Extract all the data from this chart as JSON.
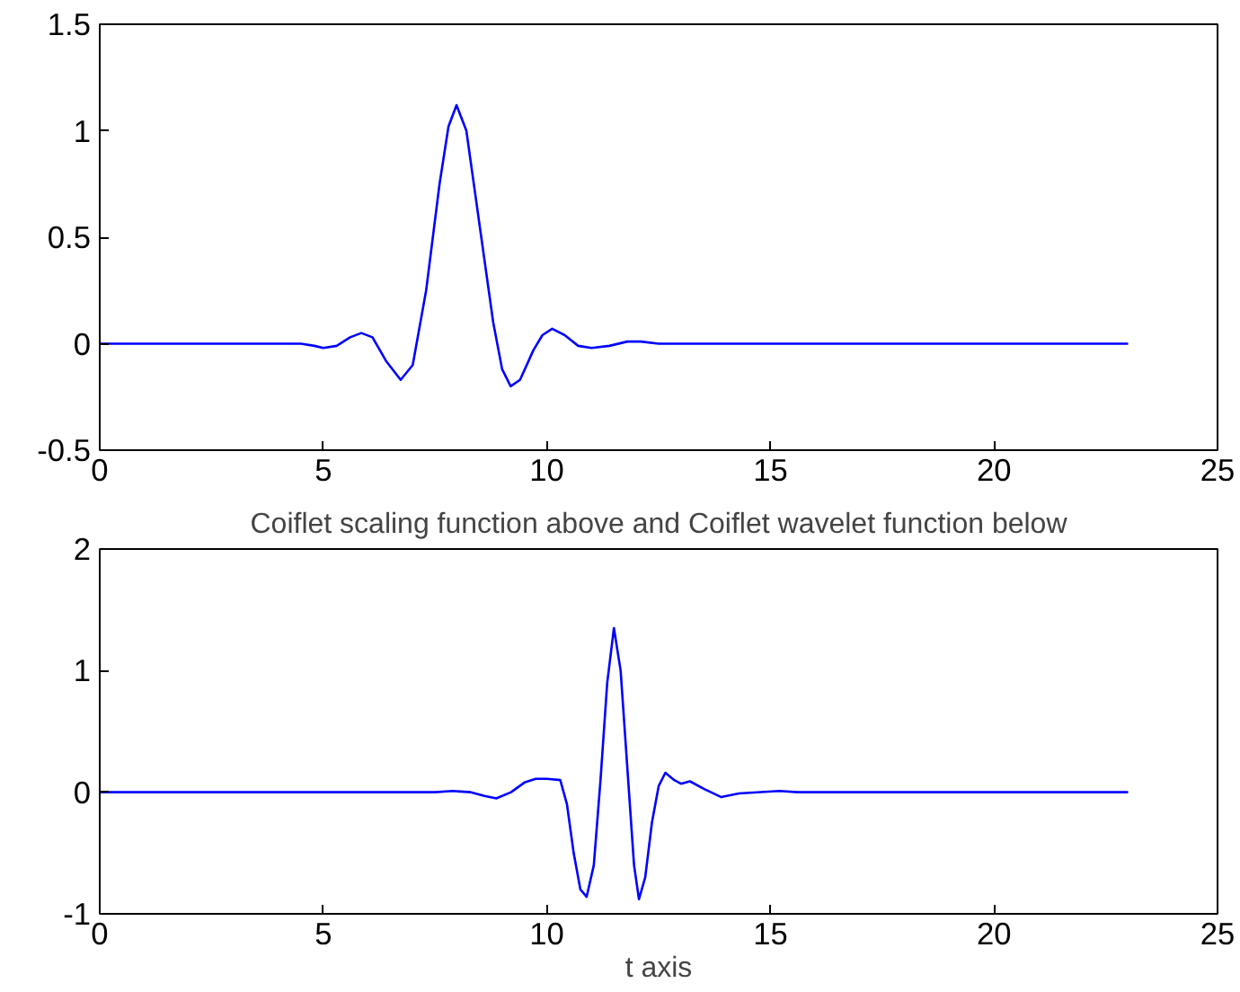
{
  "chart_data": [
    {
      "type": "line",
      "xlim": [
        0,
        25
      ],
      "ylim": [
        -0.5,
        1.5
      ],
      "xticks": [
        0,
        5,
        10,
        15,
        20,
        25
      ],
      "yticks": [
        -0.5,
        0,
        0.5,
        1,
        1.5
      ],
      "series": [
        {
          "color": "#0000ff",
          "x": [
            0,
            4.5,
            4.8,
            5.0,
            5.3,
            5.6,
            5.85,
            6.1,
            6.4,
            6.73,
            7.0,
            7.3,
            7.6,
            7.8,
            7.98,
            8.2,
            8.5,
            8.8,
            9.0,
            9.19,
            9.4,
            9.7,
            9.9,
            10.12,
            10.4,
            10.7,
            11.0,
            11.4,
            11.8,
            12.1,
            12.5,
            13,
            23
          ],
          "values": [
            0,
            0,
            -0.01,
            -0.02,
            -0.01,
            0.03,
            0.05,
            0.03,
            -0.08,
            -0.17,
            -0.1,
            0.25,
            0.75,
            1.02,
            1.12,
            1.0,
            0.55,
            0.1,
            -0.12,
            -0.2,
            -0.17,
            -0.03,
            0.04,
            0.07,
            0.04,
            -0.01,
            -0.02,
            -0.01,
            0.01,
            0.01,
            0,
            0,
            0
          ]
        }
      ]
    },
    {
      "type": "line",
      "title": "Coiflet scaling function above and Coiflet wavelet function below",
      "xlabel": "t axis",
      "xlim": [
        0,
        25
      ],
      "ylim": [
        -1,
        2
      ],
      "xticks": [
        0,
        5,
        10,
        15,
        20,
        25
      ],
      "yticks": [
        -1,
        0,
        1,
        2
      ],
      "series": [
        {
          "color": "#0000ff",
          "x": [
            0,
            7.5,
            7.9,
            8.3,
            8.6,
            8.87,
            9.2,
            9.5,
            9.75,
            10.0,
            10.3,
            10.45,
            10.6,
            10.75,
            10.89,
            11.05,
            11.2,
            11.35,
            11.5,
            11.65,
            11.8,
            11.95,
            12.06,
            12.2,
            12.35,
            12.5,
            12.65,
            12.85,
            13.0,
            13.2,
            13.5,
            13.9,
            14.3,
            15.2,
            15.6,
            23
          ],
          "values": [
            0,
            0,
            0.01,
            0,
            -0.03,
            -0.05,
            0,
            0.08,
            0.11,
            0.11,
            0.1,
            -0.1,
            -0.5,
            -0.8,
            -0.86,
            -0.6,
            0.1,
            0.9,
            1.35,
            1.0,
            0.2,
            -0.6,
            -0.88,
            -0.7,
            -0.25,
            0.05,
            0.16,
            0.1,
            0.07,
            0.09,
            0.03,
            -0.04,
            -0.01,
            0.01,
            0,
            0
          ]
        }
      ]
    }
  ]
}
